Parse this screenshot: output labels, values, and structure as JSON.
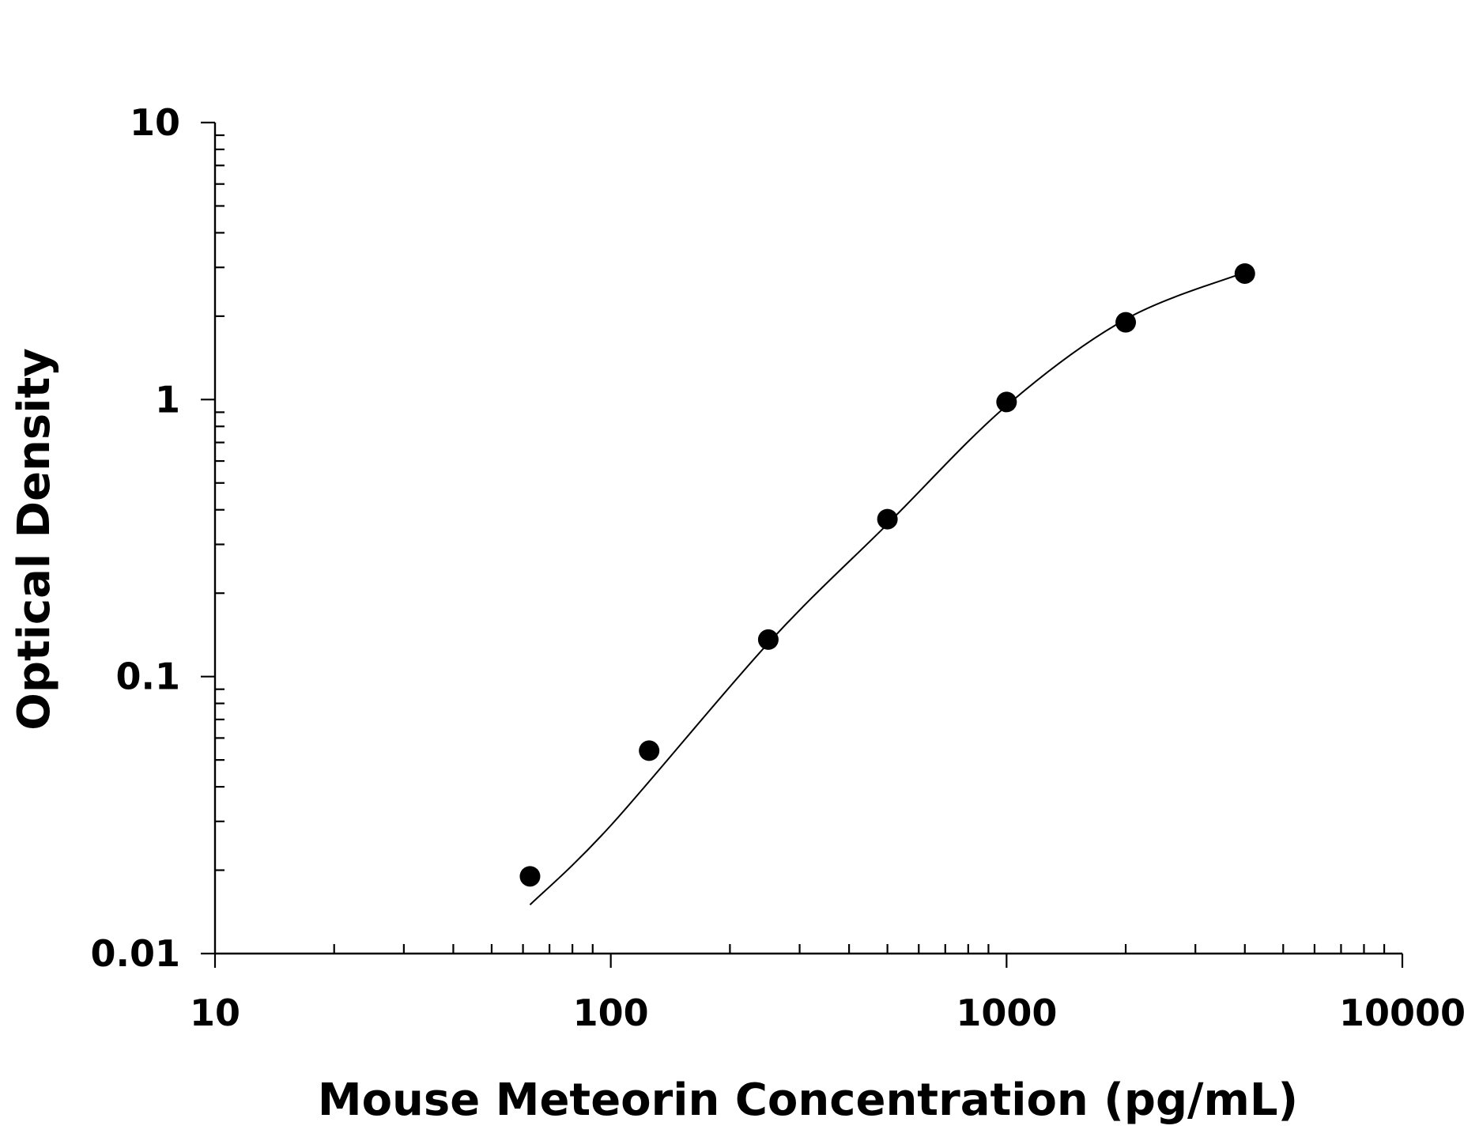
{
  "chart_data": {
    "type": "scatter",
    "title": "",
    "xlabel": "Mouse Meteorin Concentration (pg/mL)",
    "ylabel": "Optical Density",
    "x_scale": "log",
    "y_scale": "log",
    "xlim": [
      10,
      10000
    ],
    "ylim": [
      0.01,
      10
    ],
    "x_tick_labels": [
      "10",
      "100",
      "1000",
      "10000"
    ],
    "y_tick_labels": [
      "0.01",
      "0.1",
      "1",
      "10"
    ],
    "grid": false,
    "legend": "none",
    "colors": {
      "points": "#000000",
      "curve": "#000000",
      "axes": "#000000"
    },
    "series": [
      {
        "x": [
          62.5,
          125,
          250,
          500,
          1000,
          2000,
          4000
        ],
        "y": [
          0.019,
          0.054,
          0.136,
          0.37,
          0.98,
          1.9,
          2.85
        ]
      }
    ],
    "fit_curve": {
      "x": [
        62.5,
        100,
        250,
        500,
        1000,
        2000,
        4000
      ],
      "y": [
        0.015,
        0.029,
        0.132,
        0.355,
        0.95,
        1.95,
        2.88
      ]
    }
  }
}
